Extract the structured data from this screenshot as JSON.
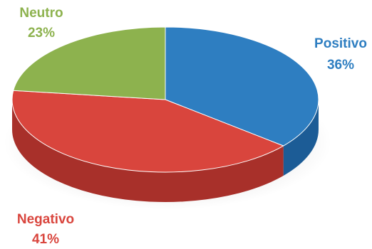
{
  "chart_data": {
    "type": "pie",
    "title": "",
    "slices": [
      {
        "name": "Positivo",
        "value": 36,
        "label": "36%",
        "color": "#2E7EC1",
        "side_color": "#1C5C96"
      },
      {
        "name": "Negativo",
        "value": 41,
        "label": "41%",
        "color": "#D9453D",
        "side_color": "#A8302A"
      },
      {
        "name": "Neutro",
        "value": 23,
        "label": "23%",
        "color": "#8DB24E",
        "side_color": "#6B8C36"
      }
    ],
    "start_angle_deg": 270,
    "style": "3d"
  }
}
